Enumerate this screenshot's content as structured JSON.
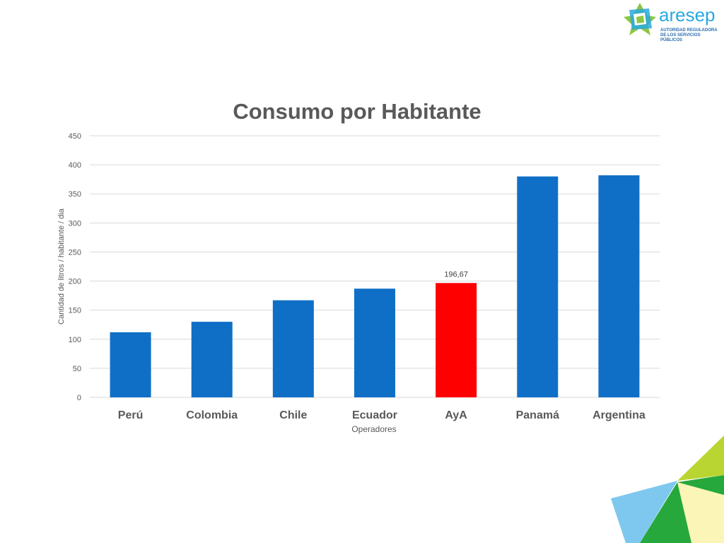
{
  "logo": {
    "name": "aresep",
    "subtitle_line1": "AUTORIDAD REGULADORA",
    "subtitle_line2": "DE LOS SERVICIOS PÚBLICOS"
  },
  "colors": {
    "bar": "#0f6fc6",
    "highlight": "#ff0000",
    "title": "#595959",
    "axis_text": "#595959",
    "grid": "#d9d9d9"
  },
  "chart_data": {
    "type": "bar",
    "title": "Consumo por Habitante",
    "xlabel": "Operadores",
    "ylabel": "Cantidad de litros / habitante / dia",
    "categories": [
      "Perú",
      "Colombia",
      "Chile",
      "Ecuador",
      "AyA",
      "Panamá",
      "Argentina"
    ],
    "values": [
      112,
      130,
      167,
      187,
      196.67,
      380,
      382
    ],
    "highlight_index": 4,
    "data_labels": [
      "",
      "",
      "",
      "",
      "196,67",
      "",
      ""
    ],
    "ylim": [
      0,
      450
    ],
    "yticks": [
      0,
      50,
      100,
      150,
      200,
      250,
      300,
      350,
      400,
      450
    ],
    "grid": true,
    "legend": "none"
  }
}
